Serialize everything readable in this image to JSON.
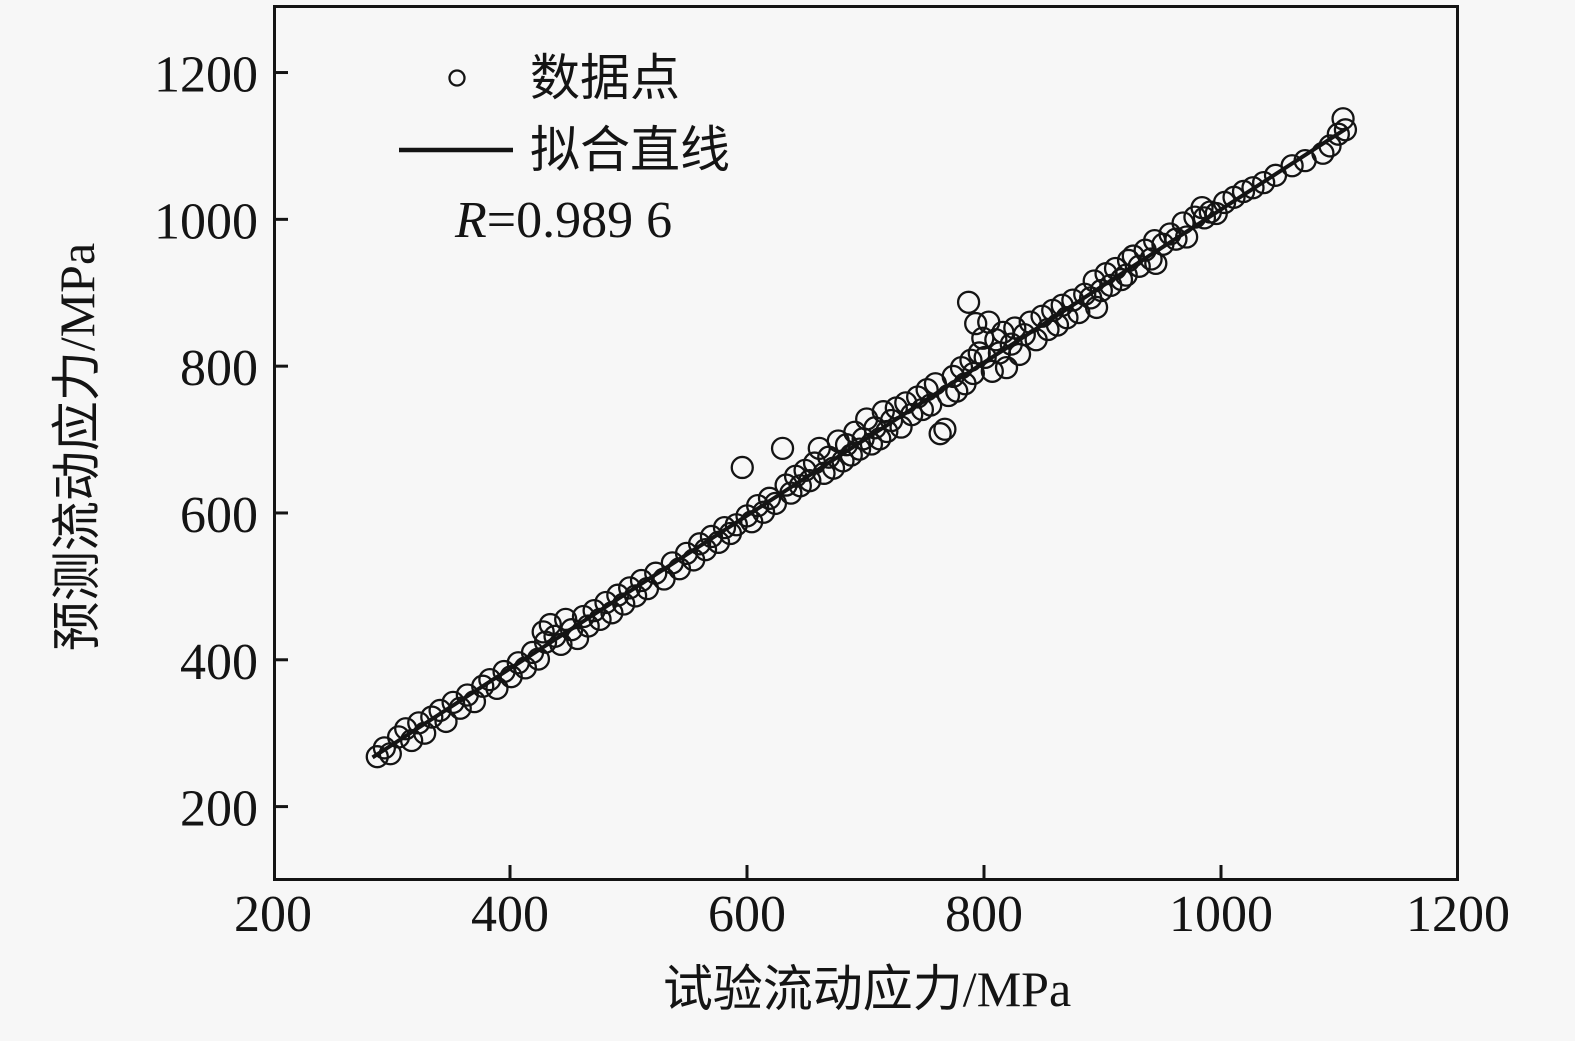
{
  "colors": {
    "background": "#f7f7f7",
    "ink": "#141414"
  },
  "chart_data": {
    "type": "scatter",
    "title": "",
    "xlabel": "试验流动应力/MPa",
    "ylabel": "预测流动应力/MPa",
    "xlim": [
      200,
      1200
    ],
    "ylim": [
      100,
      1292
    ],
    "grid": false,
    "x_tick_labels": [
      "200",
      "400",
      "600",
      "800",
      "1000",
      "1200"
    ],
    "x_tick_values": [
      200,
      400,
      600,
      800,
      1000,
      1200
    ],
    "x_tick_marks": [
      400,
      600,
      800,
      1000
    ],
    "y_tick_labels": [
      "200",
      "400",
      "600",
      "800",
      "1000",
      "1200"
    ],
    "y_tick_values": [
      200,
      400,
      600,
      800,
      1000,
      1200
    ],
    "y_tick_marks": [
      200,
      400,
      600,
      800,
      1000,
      1200
    ],
    "legend_position": "upper-left-inside",
    "legend": {
      "items": [
        {
          "marker": "open-circle",
          "label": "数据点"
        },
        {
          "marker": "line",
          "label": "拟合直线"
        }
      ],
      "r_symbol": "R",
      "r_rest": "=0.989 6"
    },
    "series": [
      {
        "name": "数据点",
        "type": "scatter",
        "points": [
          [
            288,
            268
          ],
          [
            294,
            280
          ],
          [
            299,
            272
          ],
          [
            306,
            295
          ],
          [
            312,
            306
          ],
          [
            317,
            290
          ],
          [
            323,
            314
          ],
          [
            328,
            300
          ],
          [
            334,
            322
          ],
          [
            341,
            331
          ],
          [
            346,
            316
          ],
          [
            352,
            342
          ],
          [
            358,
            334
          ],
          [
            364,
            352
          ],
          [
            370,
            343
          ],
          [
            377,
            364
          ],
          [
            383,
            373
          ],
          [
            389,
            361
          ],
          [
            395,
            384
          ],
          [
            401,
            377
          ],
          [
            407,
            396
          ],
          [
            413,
            389
          ],
          [
            419,
            410
          ],
          [
            424,
            401
          ],
          [
            428,
            438
          ],
          [
            430,
            424
          ],
          [
            434,
            448
          ],
          [
            438,
            432
          ],
          [
            443,
            421
          ],
          [
            447,
            455
          ],
          [
            452,
            441
          ],
          [
            457,
            429
          ],
          [
            462,
            459
          ],
          [
            466,
            446
          ],
          [
            471,
            467
          ],
          [
            476,
            455
          ],
          [
            481,
            478
          ],
          [
            486,
            464
          ],
          [
            491,
            488
          ],
          [
            496,
            476
          ],
          [
            501,
            498
          ],
          [
            506,
            487
          ],
          [
            511,
            508
          ],
          [
            516,
            497
          ],
          [
            523,
            518
          ],
          [
            530,
            510
          ],
          [
            537,
            532
          ],
          [
            543,
            524
          ],
          [
            549,
            545
          ],
          [
            555,
            536
          ],
          [
            560,
            558
          ],
          [
            565,
            550
          ],
          [
            570,
            568
          ],
          [
            576,
            560
          ],
          [
            581,
            580
          ],
          [
            586,
            572
          ],
          [
            591,
            584
          ],
          [
            596,
            662
          ],
          [
            600,
            596
          ],
          [
            604,
            588
          ],
          [
            609,
            610
          ],
          [
            614,
            601
          ],
          [
            619,
            620
          ],
          [
            624,
            613
          ],
          [
            630,
            688
          ],
          [
            633,
            638
          ],
          [
            637,
            627
          ],
          [
            641,
            650
          ],
          [
            645,
            637
          ],
          [
            649,
            658
          ],
          [
            653,
            644
          ],
          [
            657,
            668
          ],
          [
            661,
            688
          ],
          [
            665,
            654
          ],
          [
            669,
            676
          ],
          [
            673,
            661
          ],
          [
            677,
            698
          ],
          [
            681,
            671
          ],
          [
            684,
            693
          ],
          [
            688,
            679
          ],
          [
            691,
            710
          ],
          [
            695,
            687
          ],
          [
            698,
            701
          ],
          [
            701,
            728
          ],
          [
            705,
            694
          ],
          [
            708,
            716
          ],
          [
            712,
            701
          ],
          [
            715,
            738
          ],
          [
            718,
            711
          ],
          [
            722,
            726
          ],
          [
            726,
            743
          ],
          [
            730,
            717
          ],
          [
            734,
            750
          ],
          [
            739,
            734
          ],
          [
            744,
            758
          ],
          [
            748,
            741
          ],
          [
            752,
            768
          ],
          [
            755,
            747
          ],
          [
            759,
            776
          ],
          [
            763,
            708
          ],
          [
            767,
            714
          ],
          [
            770,
            760
          ],
          [
            774,
            786
          ],
          [
            777,
            766
          ],
          [
            781,
            798
          ],
          [
            784,
            776
          ],
          [
            787,
            887
          ],
          [
            789,
            808
          ],
          [
            791,
            790
          ],
          [
            793,
            858
          ],
          [
            796,
            818
          ],
          [
            799,
            838
          ],
          [
            801,
            812
          ],
          [
            804,
            860
          ],
          [
            807,
            793
          ],
          [
            810,
            836
          ],
          [
            813,
            818
          ],
          [
            816,
            846
          ],
          [
            819,
            798
          ],
          [
            823,
            830
          ],
          [
            826,
            852
          ],
          [
            830,
            816
          ],
          [
            834,
            843
          ],
          [
            839,
            860
          ],
          [
            844,
            836
          ],
          [
            849,
            868
          ],
          [
            854,
            850
          ],
          [
            858,
            876
          ],
          [
            862,
            856
          ],
          [
            866,
            883
          ],
          [
            870,
            866
          ],
          [
            875,
            890
          ],
          [
            880,
            873
          ],
          [
            885,
            898
          ],
          [
            890,
            893
          ],
          [
            893,
            916
          ],
          [
            895,
            880
          ],
          [
            899,
            903
          ],
          [
            903,
            926
          ],
          [
            907,
            910
          ],
          [
            911,
            933
          ],
          [
            916,
            918
          ],
          [
            920,
            924
          ],
          [
            922,
            944
          ],
          [
            926,
            950
          ],
          [
            931,
            936
          ],
          [
            936,
            958
          ],
          [
            941,
            946
          ],
          [
            944,
            971
          ],
          [
            945,
            940
          ],
          [
            951,
            966
          ],
          [
            957,
            980
          ],
          [
            962,
            973
          ],
          [
            968,
            995
          ],
          [
            971,
            976
          ],
          [
            978,
            1003
          ],
          [
            984,
            1016
          ],
          [
            986,
            1002
          ],
          [
            991,
            1010
          ],
          [
            996,
            1008
          ],
          [
            1003,
            1023
          ],
          [
            1011,
            1030
          ],
          [
            1019,
            1038
          ],
          [
            1027,
            1043
          ],
          [
            1036,
            1050
          ],
          [
            1046,
            1060
          ],
          [
            1060,
            1073
          ],
          [
            1071,
            1080
          ],
          [
            1086,
            1090
          ],
          [
            1092,
            1100
          ],
          [
            1099,
            1116
          ],
          [
            1103,
            1137
          ],
          [
            1105,
            1122
          ]
        ]
      },
      {
        "name": "拟合直线",
        "type": "line",
        "x1": 284,
        "y1": 267,
        "x2": 1106,
        "y2": 1124
      }
    ]
  }
}
